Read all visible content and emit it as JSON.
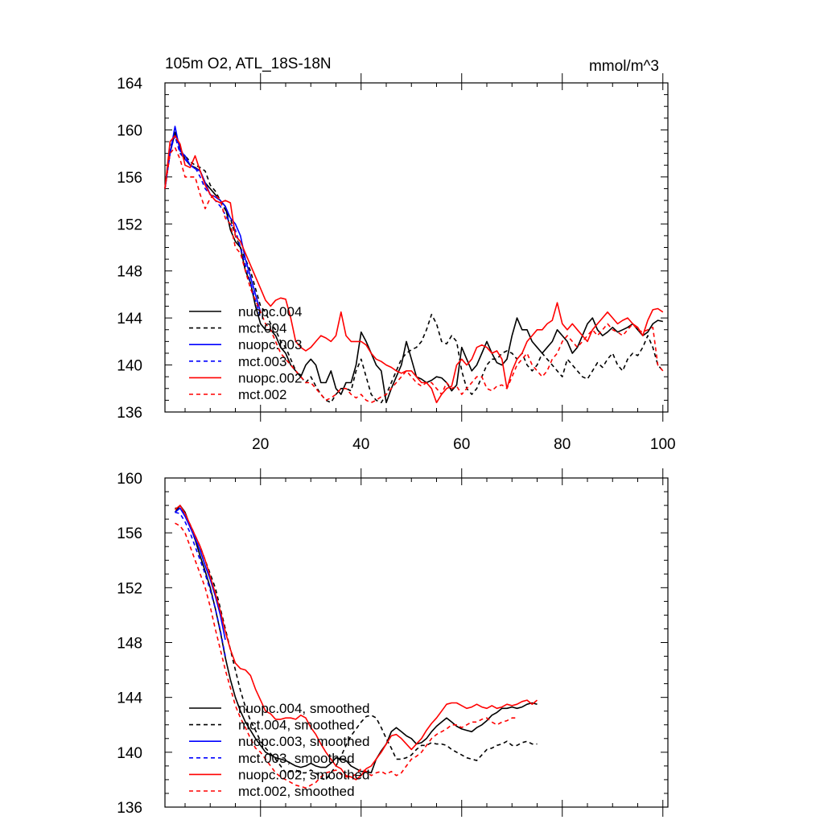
{
  "chart_data": [
    {
      "type": "line",
      "title": "105m O2, ATL_18S-18N",
      "units": "mmol/m^3",
      "xlim": [
        1,
        101
      ],
      "ylim": [
        136,
        164
      ],
      "yticks": [
        136,
        140,
        144,
        148,
        152,
        156,
        160,
        164
      ],
      "xticks": [
        20,
        40,
        60,
        80,
        100
      ],
      "show_xtick_labels": true,
      "legend_position": "bottom-left",
      "series": [
        {
          "name": "nuopc.004",
          "color": "#000000",
          "dash": false,
          "x_start": 1,
          "values": [
            155.0,
            158.0,
            159.8,
            158.5,
            157.5,
            157.0,
            156.8,
            156.5,
            155.5,
            155.0,
            154.5,
            154.0,
            153.5,
            151.5,
            150.5,
            150.0,
            148.0,
            147.0,
            145.0,
            143.5,
            143.0,
            143.0,
            142.5,
            141.5,
            141.0,
            140.0,
            139.5,
            139.0,
            140.0,
            140.5,
            140.0,
            138.5,
            138.5,
            139.5,
            138.0,
            137.5,
            138.5,
            138.5,
            140.0,
            142.8,
            142.0,
            141.0,
            140.0,
            139.5,
            136.8,
            138.0,
            139.0,
            140.0,
            142.0,
            140.5,
            139.0,
            138.8,
            138.5,
            138.7,
            139.0,
            138.9,
            138.5,
            137.8,
            138.3,
            141.5,
            140.5,
            139.5,
            140.0,
            141.0,
            142.0,
            141.0,
            140.2,
            140.0,
            140.5,
            142.5,
            144.0,
            143.0,
            143.0,
            142.0,
            141.5,
            141.0,
            141.5,
            142.0,
            143.0,
            142.5,
            142.0,
            141.0,
            141.5,
            142.5,
            143.5,
            144.0,
            143.0,
            142.5,
            142.8,
            143.2,
            142.8,
            143.0,
            143.2,
            143.5,
            143.0,
            142.5,
            142.8,
            143.5,
            143.8,
            143.7
          ]
        },
        {
          "name": "mct.004",
          "color": "#000000",
          "dash": true,
          "x_start": 1,
          "values": [
            155.0,
            158.5,
            159.5,
            158.0,
            157.8,
            157.3,
            157.0,
            156.8,
            156.5,
            155.3,
            154.8,
            154.0,
            153.2,
            152.5,
            151.0,
            150.0,
            149.0,
            148.0,
            146.5,
            145.0,
            144.5,
            143.5,
            143.0,
            142.0,
            141.5,
            140.5,
            139.5,
            139.0,
            138.5,
            139.0,
            138.2,
            137.5,
            137.0,
            136.8,
            137.5,
            138.0,
            138.0,
            137.8,
            139.5,
            140.5,
            139.0,
            137.5,
            137.0,
            136.8,
            137.5,
            138.5,
            139.5,
            140.5,
            141.0,
            141.3,
            141.5,
            142.0,
            143.0,
            144.3,
            143.5,
            142.0,
            141.8,
            142.5,
            142.0,
            139.5,
            138.0,
            137.5,
            138.0,
            139.0,
            140.0,
            140.5,
            140.5,
            141.0,
            141.2,
            141.0,
            140.5,
            141.0,
            140.0,
            139.5,
            140.0,
            141.0,
            140.5,
            140.0,
            139.5,
            139.0,
            140.5,
            140.0,
            139.5,
            139.0,
            138.8,
            139.5,
            140.2,
            139.8,
            140.5,
            141.0,
            140.0,
            139.5,
            140.5,
            141.0,
            140.8,
            141.5,
            142.5,
            141.5,
            140.0,
            139.5
          ]
        },
        {
          "name": "nuopc.003",
          "color": "#0000ff",
          "dash": false,
          "x_start": 1,
          "values": [
            155.0,
            158.0,
            160.3,
            158.2,
            157.8,
            157.0,
            156.7,
            156.5,
            155.5,
            154.5,
            154.3,
            154.0,
            153.5,
            152.5,
            152.0,
            151.0,
            149.0,
            147.5,
            146.0,
            144.5
          ]
        },
        {
          "name": "mct.003",
          "color": "#0000ff",
          "dash": true,
          "x_start": 1,
          "values": [
            155.0,
            158.2,
            159.5,
            158.0,
            157.5,
            157.0,
            156.8,
            156.0,
            155.0,
            154.5,
            154.0,
            153.5,
            152.8,
            152.0,
            151.5,
            150.0,
            148.5,
            147.0,
            145.5,
            144.0
          ]
        },
        {
          "name": "nuopc.002",
          "color": "#ff0000",
          "dash": false,
          "x_start": 1,
          "values": [
            155.0,
            159.0,
            159.5,
            158.8,
            157.0,
            156.8,
            157.8,
            156.5,
            155.3,
            154.5,
            154.0,
            153.8,
            154.0,
            153.8,
            151.0,
            150.5,
            149.5,
            148.5,
            147.5,
            146.5,
            145.5,
            145.0,
            145.5,
            145.7,
            145.6,
            144.0,
            142.0,
            141.5,
            141.2,
            141.5,
            142.0,
            142.5,
            142.3,
            142.0,
            142.5,
            144.5,
            142.5,
            142.0,
            142.0,
            142.0,
            141.7,
            141.0,
            140.5,
            140.3,
            140.0,
            139.8,
            139.5,
            139.3,
            139.5,
            139.5,
            139.0,
            138.5,
            138.5,
            138.0,
            136.8,
            137.5,
            138.0,
            138.2,
            140.0,
            140.5,
            140.0,
            140.5,
            141.5,
            141.7,
            141.5,
            141.0,
            141.2,
            140.5,
            138.0,
            139.5,
            140.5,
            141.0,
            142.0,
            142.5,
            143.0,
            143.0,
            143.5,
            143.8,
            145.3,
            143.5,
            143.0,
            143.5,
            143.0,
            142.5,
            142.0,
            143.0,
            143.5,
            144.0,
            144.5,
            144.0,
            143.5,
            143.8,
            144.0,
            143.5,
            143.2,
            142.5,
            143.8,
            144.7,
            144.8,
            144.5
          ]
        },
        {
          "name": "mct.002",
          "color": "#ff0000",
          "dash": true,
          "x_start": 1,
          "values": [
            155.0,
            158.0,
            158.5,
            157.5,
            156.0,
            156.0,
            156.0,
            154.5,
            153.3,
            154.2,
            154.5,
            154.0,
            152.5,
            152.0,
            150.0,
            149.5,
            148.0,
            146.5,
            145.5,
            144.5,
            143.5,
            143.0,
            142.0,
            141.0,
            140.5,
            140.0,
            139.5,
            139.0,
            138.5,
            138.5,
            138.0,
            137.5,
            137.0,
            137.2,
            137.5,
            138.0,
            138.0,
            137.5,
            137.2,
            137.5,
            137.0,
            136.8,
            137.0,
            137.3,
            137.5,
            138.0,
            138.5,
            139.0,
            139.5,
            139.0,
            138.5,
            138.2,
            138.5,
            138.5,
            138.0,
            137.5,
            138.5,
            138.0,
            138.2,
            137.5,
            138.0,
            138.5,
            139.0,
            139.0,
            138.0,
            137.8,
            138.2,
            138.3,
            138.0,
            139.0,
            140.0,
            140.5,
            141.0,
            140.0,
            139.5,
            139.0,
            139.5,
            140.5,
            141.0,
            142.0,
            142.5,
            142.0,
            141.5,
            142.0,
            142.5,
            143.0,
            142.5,
            143.0,
            143.5,
            143.0,
            142.8,
            142.5,
            143.0,
            143.5,
            143.0,
            142.8,
            143.0,
            143.2,
            140.0,
            139.5
          ]
        }
      ]
    },
    {
      "type": "line",
      "title": "",
      "xlim": [
        1,
        101
      ],
      "ylim": [
        136,
        160
      ],
      "yticks": [
        136,
        140,
        144,
        148,
        152,
        156,
        160
      ],
      "xticks": [
        20,
        40,
        60,
        80,
        100
      ],
      "show_xtick_labels": false,
      "legend_position": "bottom-left",
      "series": [
        {
          "name": "nuopc.004, smoothed",
          "color": "#000000",
          "dash": false,
          "x_start": 3,
          "values": [
            157.5,
            158.0,
            157.5,
            156.5,
            155.5,
            154.3,
            153.2,
            152.0,
            150.5,
            148.8,
            146.9,
            145.3,
            144.0,
            143.0,
            142.2,
            141.6,
            141.0,
            140.5,
            140.0,
            139.8,
            139.6,
            139.5,
            139.4,
            139.2,
            139.0,
            138.9,
            139.0,
            139.2,
            139.0,
            138.9,
            138.9,
            139.2,
            139.6,
            139.5,
            139.4,
            139.0,
            138.8,
            138.6,
            138.6,
            138.5,
            139.5,
            140.1,
            140.6,
            141.5,
            141.8,
            141.5,
            141.2,
            141.0,
            140.6,
            140.7,
            141.0,
            141.5,
            141.9,
            142.2,
            142.5,
            142.2,
            141.9,
            141.7,
            141.6,
            141.5,
            141.8,
            142.0,
            142.3,
            142.7,
            142.9,
            143.2,
            143.2,
            143.3,
            143.2,
            143.3,
            143.5,
            143.6,
            143.5
          ]
        },
        {
          "name": "mct.004, smoothed",
          "color": "#000000",
          "dash": true,
          "x_start": 3,
          "values": [
            157.8,
            157.8,
            157.3,
            156.6,
            155.8,
            155.0,
            154.0,
            153.0,
            152.0,
            150.5,
            149.0,
            147.5,
            146.0,
            144.5,
            143.3,
            142.3,
            141.6,
            140.8,
            140.3,
            139.9,
            139.5,
            139.0,
            138.5,
            138.6,
            138.7,
            138.5,
            138.5,
            138.7,
            138.5,
            138.1,
            138.0,
            138.5,
            139.0,
            139.7,
            140.5,
            141.2,
            141.7,
            142.2,
            142.6,
            142.7,
            142.5,
            141.8,
            141.0,
            140.3,
            139.5,
            139.5,
            139.6,
            139.8,
            140.2,
            140.5,
            140.5,
            140.7,
            140.6,
            140.6,
            140.5,
            140.2,
            140.0,
            139.8,
            139.6,
            139.5,
            139.4,
            139.8,
            140.2,
            140.3,
            140.5,
            140.6,
            140.8,
            140.5,
            140.5,
            140.7,
            140.8,
            140.6,
            140.6
          ]
        },
        {
          "name": "nuopc.003, smoothed",
          "color": "#0000ff",
          "dash": false,
          "x_start": 3,
          "values": [
            157.5,
            157.8,
            157.2,
            156.4,
            155.6,
            154.7,
            153.6,
            152.6,
            151.4,
            150.0,
            148.2
          ]
        },
        {
          "name": "mct.003, smoothed",
          "color": "#0000ff",
          "dash": true,
          "x_start": 3,
          "values": [
            157.5,
            157.4,
            156.8,
            156.0,
            155.0,
            154.0,
            153.0,
            151.8,
            150.5,
            148.9,
            147.0
          ]
        },
        {
          "name": "nuopc.002, smoothed",
          "color": "#ff0000",
          "dash": false,
          "x_start": 3,
          "values": [
            157.7,
            158.0,
            157.4,
            156.6,
            155.8,
            155.0,
            154.0,
            152.8,
            151.6,
            150.3,
            148.8,
            147.5,
            146.5,
            146.1,
            146.0,
            145.6,
            144.6,
            143.8,
            143.0,
            142.8,
            142.4,
            142.4,
            142.5,
            142.5,
            142.4,
            142.7,
            142.5,
            141.8,
            141.3,
            140.6,
            140.0,
            139.5,
            139.0,
            138.8,
            138.3,
            138.2,
            138.0,
            138.3,
            138.8,
            139.0,
            139.5,
            140.0,
            140.6,
            141.2,
            141.3,
            141.0,
            140.6,
            140.2,
            140.6,
            141.0,
            141.6,
            142.1,
            142.5,
            143.0,
            143.5,
            143.6,
            143.6,
            143.4,
            143.2,
            143.3,
            143.5,
            143.3,
            143.2,
            143.4,
            143.2,
            143.3,
            143.5,
            143.4,
            143.5,
            143.7,
            143.8,
            143.5,
            143.8
          ]
        },
        {
          "name": "mct.002, smoothed",
          "color": "#ff0000",
          "dash": true,
          "x_start": 3,
          "values": [
            156.7,
            156.5,
            156.0,
            155.0,
            154.0,
            153.0,
            152.0,
            150.6,
            149.0,
            147.5,
            146.0,
            144.7,
            143.4,
            142.5,
            141.8,
            141.0,
            140.3,
            140.0,
            139.5,
            139.0,
            138.5,
            138.2,
            138.0,
            137.8,
            137.6,
            137.5,
            137.4,
            137.6,
            137.8,
            138.2,
            138.5,
            138.6,
            138.7,
            138.4,
            138.2,
            138.2,
            138.4,
            138.8,
            138.6,
            138.3,
            138.5,
            138.6,
            138.4,
            138.6,
            138.3,
            138.5,
            139.0,
            139.5,
            139.7,
            140.0,
            140.5,
            141.0,
            141.3,
            141.5,
            141.7,
            142.0,
            142.0,
            141.8,
            142.0,
            142.2,
            142.2,
            142.4,
            142.5,
            142.2,
            142.0,
            142.2,
            142.3,
            142.5,
            142.5
          ]
        }
      ]
    }
  ]
}
